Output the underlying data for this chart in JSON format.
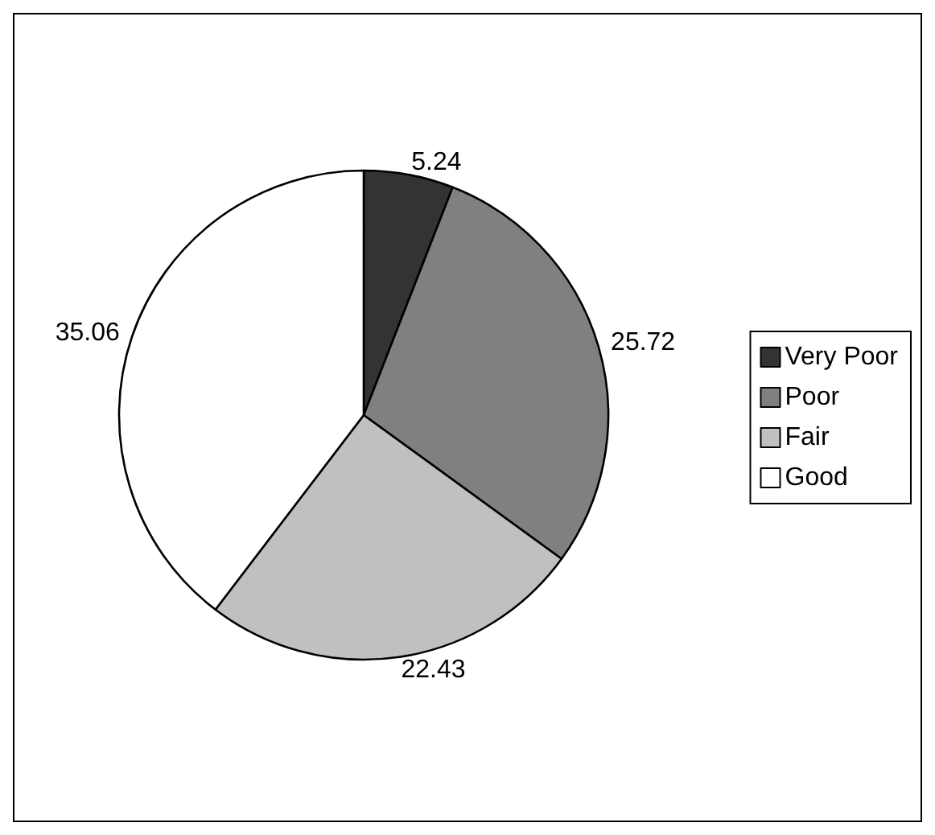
{
  "chart_data": {
    "type": "pie",
    "categories": [
      "Very Poor",
      "Poor",
      "Fair",
      "Good"
    ],
    "values": [
      5.24,
      25.72,
      22.43,
      35.06
    ],
    "colors": [
      "#333333",
      "#808080",
      "#c0c0c0",
      "#ffffff"
    ],
    "data_labels": true,
    "legend": "right"
  }
}
